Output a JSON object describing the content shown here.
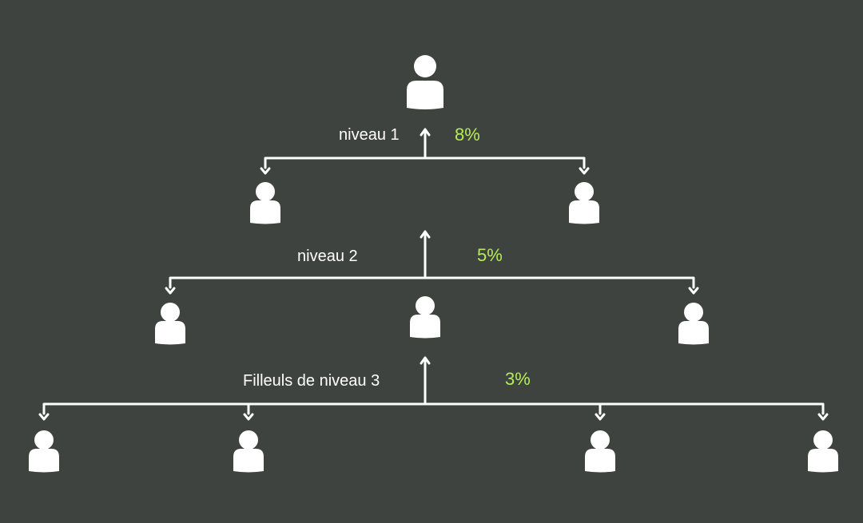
{
  "colors": {
    "background": "#3f4340",
    "lines": "#ffffff",
    "icons": "#ffffff",
    "percent": "#b5ec57"
  },
  "icon": "person-icon",
  "levels": [
    {
      "label": "niveau 1",
      "percent": "8%",
      "children": 2
    },
    {
      "label": "niveau 2",
      "percent": "5%",
      "children": 3
    },
    {
      "label": "Filleuls de niveau 3",
      "percent": "3%",
      "children": 4
    }
  ]
}
